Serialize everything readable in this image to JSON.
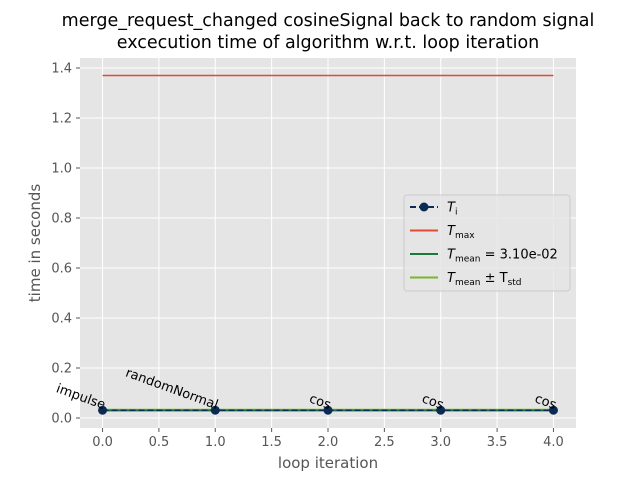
{
  "chart_data": {
    "type": "line",
    "title_line1": "merge_request_changed cosineSignal back to random signal",
    "title_line2": "excecution time of algorithm w.r.t. loop iteration",
    "xlabel": "loop iteration",
    "ylabel": "time in seconds",
    "xlim": [
      -0.2,
      4.2
    ],
    "ylim": [
      -0.04,
      1.44
    ],
    "xticks": [
      0.0,
      0.5,
      1.0,
      1.5,
      2.0,
      2.5,
      3.0,
      3.5,
      4.0
    ],
    "xtick_labels": [
      "0.0",
      "0.5",
      "1.0",
      "1.5",
      "2.0",
      "2.5",
      "3.0",
      "3.5",
      "4.0"
    ],
    "yticks": [
      0.0,
      0.2,
      0.4,
      0.6,
      0.8,
      1.0,
      1.2,
      1.4
    ],
    "ytick_labels": [
      "0.0",
      "0.2",
      "0.4",
      "0.6",
      "0.8",
      "1.0",
      "1.2",
      "1.4"
    ],
    "grid": true,
    "legend_position": "center-right",
    "series": [
      {
        "key": "ti",
        "x": [
          0,
          1,
          2,
          3,
          4
        ],
        "y": [
          0.031,
          0.031,
          0.031,
          0.031,
          0.031
        ],
        "color": "#0b2a54",
        "style": "dashed-with-markers"
      },
      {
        "key": "tmax",
        "x": [
          0,
          4
        ],
        "y": [
          1.37,
          1.37
        ],
        "color": "#e24a33",
        "style": "solid"
      },
      {
        "key": "tmean",
        "x": [
          0,
          4
        ],
        "y": [
          0.031,
          0.031
        ],
        "color": "#1a7a3a",
        "style": "solid"
      },
      {
        "key": "tstd_upper",
        "x": [
          0,
          4
        ],
        "y": [
          0.034,
          0.034
        ],
        "color": "#77b82a",
        "style": "solid"
      },
      {
        "key": "tstd_lower",
        "x": [
          0,
          4
        ],
        "y": [
          0.028,
          0.028
        ],
        "color": "#77b82a",
        "style": "solid"
      }
    ],
    "legend": [
      {
        "main": "T",
        "sub": "i",
        "suffix": "",
        "color": "#0b2a54",
        "marker": true
      },
      {
        "main": "T",
        "sub": "max",
        "suffix": "",
        "color": "#e24a33",
        "marker": false
      },
      {
        "main": "T",
        "sub": "mean",
        "suffix": " = 3.10e-02",
        "color": "#1a7a3a",
        "marker": false
      },
      {
        "main": "T",
        "sub": "mean",
        "suffix": " ± T",
        "sub2": "std",
        "color": "#77b82a",
        "marker": false
      }
    ],
    "annotations": [
      {
        "text": "impulse",
        "x": 0,
        "y": 0.031
      },
      {
        "text": "randomNormal",
        "x": 1,
        "y": 0.031
      },
      {
        "text": "cos",
        "x": 2,
        "y": 0.031
      },
      {
        "text": "cos",
        "x": 3,
        "y": 0.031
      },
      {
        "text": "cos",
        "x": 4,
        "y": 0.031
      }
    ]
  }
}
